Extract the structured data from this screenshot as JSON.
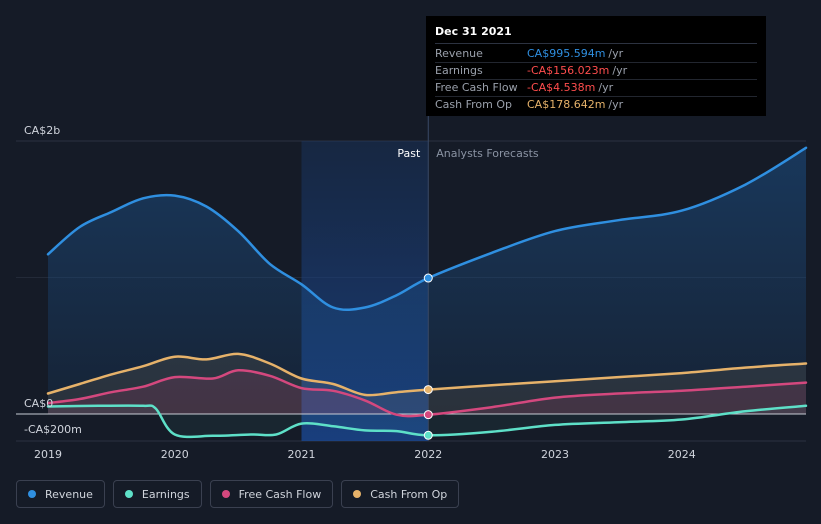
{
  "chart_data": {
    "type": "line",
    "y_labels": {
      "top": "CA$2b",
      "zero": "CA$0",
      "bottom": "-CA$200m"
    },
    "ylim": [
      -200,
      2000
    ],
    "xlim": [
      2019.0,
      2024.98
    ],
    "x_ticks": [
      "2019",
      "2020",
      "2021",
      "2022",
      "2023",
      "2024"
    ],
    "past_label": "Past",
    "forecast_label": "Analysts Forecasts",
    "divider_x": 2022.0,
    "highlight_start_x": 2021.0,
    "series": [
      {
        "name": "Revenue",
        "color": "#2f8fe0",
        "points": [
          [
            2019.0,
            1170
          ],
          [
            2019.25,
            1370
          ],
          [
            2019.5,
            1480
          ],
          [
            2019.75,
            1580
          ],
          [
            2020.0,
            1600
          ],
          [
            2020.25,
            1520
          ],
          [
            2020.5,
            1340
          ],
          [
            2020.75,
            1100
          ],
          [
            2021.0,
            950
          ],
          [
            2021.25,
            780
          ],
          [
            2021.5,
            780
          ],
          [
            2021.75,
            870
          ],
          [
            2022.0,
            996
          ],
          [
            2022.5,
            1180
          ],
          [
            2023.0,
            1340
          ],
          [
            2023.5,
            1420
          ],
          [
            2024.0,
            1490
          ],
          [
            2024.5,
            1680
          ],
          [
            2024.98,
            1950
          ]
        ]
      },
      {
        "name": "Earnings",
        "color": "#5ee0c8",
        "points": [
          [
            2019.0,
            55
          ],
          [
            2019.4,
            60
          ],
          [
            2019.75,
            60
          ],
          [
            2019.85,
            40
          ],
          [
            2020.0,
            -150
          ],
          [
            2020.3,
            -160
          ],
          [
            2020.6,
            -150
          ],
          [
            2020.8,
            -150
          ],
          [
            2021.0,
            -70
          ],
          [
            2021.25,
            -90
          ],
          [
            2021.5,
            -120
          ],
          [
            2021.75,
            -125
          ],
          [
            2022.0,
            -156
          ],
          [
            2022.5,
            -130
          ],
          [
            2023.0,
            -80
          ],
          [
            2023.5,
            -60
          ],
          [
            2024.0,
            -40
          ],
          [
            2024.5,
            20
          ],
          [
            2024.98,
            60
          ]
        ]
      },
      {
        "name": "Free Cash Flow",
        "color": "#d4487e",
        "points": [
          [
            2019.0,
            80
          ],
          [
            2019.25,
            110
          ],
          [
            2019.5,
            160
          ],
          [
            2019.75,
            200
          ],
          [
            2020.0,
            270
          ],
          [
            2020.3,
            260
          ],
          [
            2020.5,
            320
          ],
          [
            2020.75,
            280
          ],
          [
            2021.0,
            190
          ],
          [
            2021.25,
            170
          ],
          [
            2021.5,
            100
          ],
          [
            2021.75,
            -5
          ],
          [
            2022.0,
            -5
          ],
          [
            2022.5,
            50
          ],
          [
            2023.0,
            120
          ],
          [
            2023.5,
            150
          ],
          [
            2024.0,
            170
          ],
          [
            2024.5,
            200
          ],
          [
            2024.98,
            230
          ]
        ]
      },
      {
        "name": "Cash From Op",
        "color": "#e6b26a",
        "points": [
          [
            2019.0,
            150
          ],
          [
            2019.25,
            220
          ],
          [
            2019.5,
            290
          ],
          [
            2019.75,
            350
          ],
          [
            2020.0,
            420
          ],
          [
            2020.25,
            400
          ],
          [
            2020.5,
            440
          ],
          [
            2020.75,
            370
          ],
          [
            2021.0,
            260
          ],
          [
            2021.25,
            220
          ],
          [
            2021.5,
            140
          ],
          [
            2021.75,
            160
          ],
          [
            2022.0,
            179
          ],
          [
            2022.5,
            210
          ],
          [
            2023.0,
            240
          ],
          [
            2023.5,
            270
          ],
          [
            2024.0,
            300
          ],
          [
            2024.5,
            340
          ],
          [
            2024.98,
            370
          ]
        ]
      }
    ]
  },
  "tooltip": {
    "date": "Dec 31 2021",
    "rows": [
      {
        "label": "Revenue",
        "value": "CA$995.594m",
        "unit": "/yr",
        "color": "#2f8fe0"
      },
      {
        "label": "Earnings",
        "value": "-CA$156.023m",
        "unit": "/yr",
        "color": "#ff4d4d"
      },
      {
        "label": "Free Cash Flow",
        "value": "-CA$4.538m",
        "unit": "/yr",
        "color": "#ff4d4d"
      },
      {
        "label": "Cash From Op",
        "value": "CA$178.642m",
        "unit": "/yr",
        "color": "#e6b26a"
      }
    ]
  },
  "legend": [
    {
      "label": "Revenue",
      "color": "#2f8fe0"
    },
    {
      "label": "Earnings",
      "color": "#5ee0c8"
    },
    {
      "label": "Free Cash Flow",
      "color": "#d4487e"
    },
    {
      "label": "Cash From Op",
      "color": "#e6b26a"
    }
  ]
}
